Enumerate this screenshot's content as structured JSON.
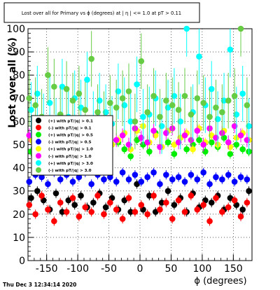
{
  "title_box": {
    "text": "Lost over all for Primary vs ϕ (degrees) at | η | <= 1.0 at pT > 0.11"
  },
  "footer": {
    "timestamp": "Thu Dec  3 12:34:14 2020"
  },
  "colors": {
    "black": "#000000",
    "red": "#ff0000",
    "green": "#00ee00",
    "blue": "#0000ff",
    "yellow": "#ffff00",
    "magenta": "#ff00ff",
    "cyan": "#00ffff",
    "olive_green": "#66cc44"
  },
  "chart_data": {
    "type": "scatter",
    "title": "Lost over all for Primary vs ϕ (degrees) at | η | <= 1.0 at pT > 0.11",
    "xlabel": "ϕ (degrees)",
    "ylabel": "Lost over all (%)",
    "xlim": [
      -180,
      180
    ],
    "ylim": [
      0,
      100
    ],
    "x_ticks": [
      -150,
      -100,
      -50,
      0,
      50,
      100,
      150
    ],
    "y_ticks": [
      0,
      10,
      20,
      30,
      40,
      50,
      60,
      70,
      80,
      90,
      100
    ],
    "grid": true,
    "legend_position": "left-middle",
    "series": [
      {
        "name": "(+) with pT/|q| > 0.1",
        "color": "#000000",
        "err": 2,
        "x": [
          -175,
          -165,
          -155,
          -145,
          -135,
          -125,
          -115,
          -105,
          -95,
          -85,
          -75,
          -65,
          -55,
          -45,
          -35,
          -25,
          -15,
          -5,
          5,
          15,
          25,
          35,
          45,
          55,
          65,
          75,
          85,
          95,
          105,
          115,
          125,
          135,
          145,
          155,
          165,
          175
        ],
        "y": [
          27,
          30,
          26,
          22,
          29,
          21,
          26,
          24,
          28,
          23,
          25,
          29,
          23,
          27,
          22,
          26,
          21,
          33,
          22,
          28,
          21,
          25,
          30,
          24,
          27,
          21,
          29,
          23,
          26,
          25,
          28,
          22,
          27,
          24,
          22,
          30
        ]
      },
      {
        "name": "(-) with pT/|q| > 0.1",
        "color": "#ff0000",
        "err": 2,
        "x": [
          -178,
          -168,
          -158,
          -148,
          -138,
          -128,
          -118,
          -108,
          -98,
          -88,
          -78,
          -68,
          -58,
          -48,
          -38,
          -28,
          -18,
          -8,
          2,
          12,
          22,
          32,
          42,
          52,
          62,
          72,
          82,
          92,
          102,
          112,
          122,
          132,
          142,
          152,
          162,
          172
        ],
        "y": [
          24,
          20,
          28,
          22,
          17,
          25,
          21,
          27,
          19,
          23,
          21,
          28,
          20,
          25,
          22,
          18,
          27,
          21,
          24,
          20,
          28,
          22,
          25,
          18,
          26,
          21,
          28,
          22,
          24,
          17,
          27,
          21,
          23,
          26,
          19,
          25
        ]
      },
      {
        "name": "(+) with pT/|q| > 0.5",
        "color": "#00ee00",
        "err": 2,
        "x": [
          -175,
          -165,
          -155,
          -145,
          -135,
          -125,
          -115,
          -105,
          -95,
          -85,
          -75,
          -65,
          -55,
          -45,
          -35,
          -25,
          -15,
          -5,
          5,
          15,
          25,
          35,
          45,
          55,
          65,
          75,
          85,
          95,
          105,
          115,
          125,
          135,
          145,
          155,
          165,
          175
        ],
        "y": [
          47,
          50,
          52,
          45,
          50,
          55,
          48,
          51,
          46,
          53,
          49,
          54,
          47,
          50,
          51,
          48,
          45,
          52,
          50,
          47,
          55,
          49,
          51,
          46,
          53,
          48,
          50,
          52,
          47,
          51,
          49,
          53,
          46,
          50,
          48,
          47
        ]
      },
      {
        "name": "(-) with pT/|q| > 0.5",
        "color": "#0000ff",
        "err": 2,
        "x": [
          -178,
          -168,
          -158,
          -148,
          -138,
          -128,
          -118,
          -108,
          -98,
          -88,
          -78,
          -68,
          -58,
          -48,
          -38,
          -28,
          -18,
          -8,
          2,
          12,
          22,
          32,
          42,
          52,
          62,
          72,
          82,
          92,
          102,
          112,
          122,
          132,
          142,
          152,
          162,
          172
        ],
        "y": [
          34,
          37,
          36,
          33,
          38,
          35,
          37,
          34,
          36,
          38,
          33,
          37,
          35,
          36,
          34,
          38,
          35,
          37,
          34,
          36,
          38,
          33,
          37,
          35,
          36,
          34,
          37,
          35,
          38,
          33,
          36,
          35,
          37,
          34,
          36,
          35
        ]
      },
      {
        "name": "(+) with pT/|q| > 1.0",
        "color": "#ffff00",
        "err": 2,
        "x": [
          -175,
          -165,
          -155,
          -145,
          -135,
          -125,
          -115,
          -105,
          -95,
          -85,
          -75,
          -65,
          -55,
          -45,
          -35,
          -25,
          -15,
          -5,
          5,
          15,
          25,
          35,
          45,
          55,
          65,
          75,
          85,
          95,
          105,
          115,
          125,
          135,
          145,
          155,
          165,
          175
        ],
        "y": [
          52,
          55,
          49,
          57,
          50,
          53,
          56,
          48,
          54,
          51,
          55,
          49,
          57,
          50,
          52,
          55,
          48,
          56,
          58,
          51,
          54,
          49,
          56,
          50,
          53,
          55,
          48,
          57,
          51,
          54,
          50,
          56,
          49,
          53,
          55,
          52
        ]
      },
      {
        "name": "(-) with pT/|q| > 1.0",
        "color": "#ff00ff",
        "err": 3,
        "x": [
          -178,
          -168,
          -158,
          -148,
          -138,
          -128,
          -118,
          -108,
          -98,
          -88,
          -78,
          -68,
          -58,
          -48,
          -38,
          -28,
          -18,
          -8,
          2,
          12,
          22,
          32,
          42,
          52,
          62,
          72,
          82,
          92,
          102,
          112,
          122,
          132,
          142,
          152,
          162,
          172
        ],
        "y": [
          54,
          51,
          57,
          50,
          55,
          52,
          58,
          49,
          56,
          53,
          50,
          57,
          51,
          55,
          52,
          54,
          50,
          57,
          53,
          51,
          56,
          49,
          55,
          57,
          51,
          54,
          52,
          56,
          50,
          57,
          53,
          55,
          51,
          58,
          54,
          52
        ]
      },
      {
        "name": "(+) with pT/|q| > 3.0",
        "color": "#00ffff",
        "err": 12,
        "x": [
          -175,
          -165,
          -155,
          -145,
          -135,
          -125,
          -115,
          -105,
          -95,
          -85,
          -75,
          -65,
          -55,
          -45,
          -35,
          -25,
          -15,
          -5,
          5,
          15,
          25,
          35,
          45,
          55,
          65,
          75,
          85,
          95,
          105,
          115,
          125,
          135,
          145,
          155,
          165,
          175
        ],
        "y": [
          65,
          72,
          60,
          68,
          58,
          75,
          62,
          70,
          66,
          78,
          61,
          69,
          64,
          59,
          73,
          67,
          60,
          76,
          62,
          63,
          70,
          58,
          66,
          71,
          60,
          100,
          64,
          88,
          67,
          74,
          61,
          69,
          91,
          63,
          72,
          58
        ]
      },
      {
        "name": "(-) with pT/|q| > 3.0",
        "color": "#66cc44",
        "err": 12,
        "x": [
          -178,
          -168,
          -158,
          -148,
          -138,
          -128,
          -118,
          -108,
          -98,
          -88,
          -78,
          -68,
          -58,
          -48,
          -38,
          -28,
          -18,
          -8,
          2,
          12,
          22,
          32,
          42,
          52,
          62,
          72,
          82,
          92,
          102,
          112,
          122,
          132,
          142,
          152,
          162,
          172
        ],
        "y": [
          70,
          67,
          62,
          80,
          75,
          63,
          74,
          69,
          72,
          65,
          87,
          64,
          61,
          68,
          66,
          70,
          73,
          60,
          86,
          64,
          71,
          62,
          69,
          67,
          65,
          71,
          63,
          70,
          68,
          62,
          66,
          64,
          69,
          71,
          100,
          67
        ]
      }
    ]
  }
}
